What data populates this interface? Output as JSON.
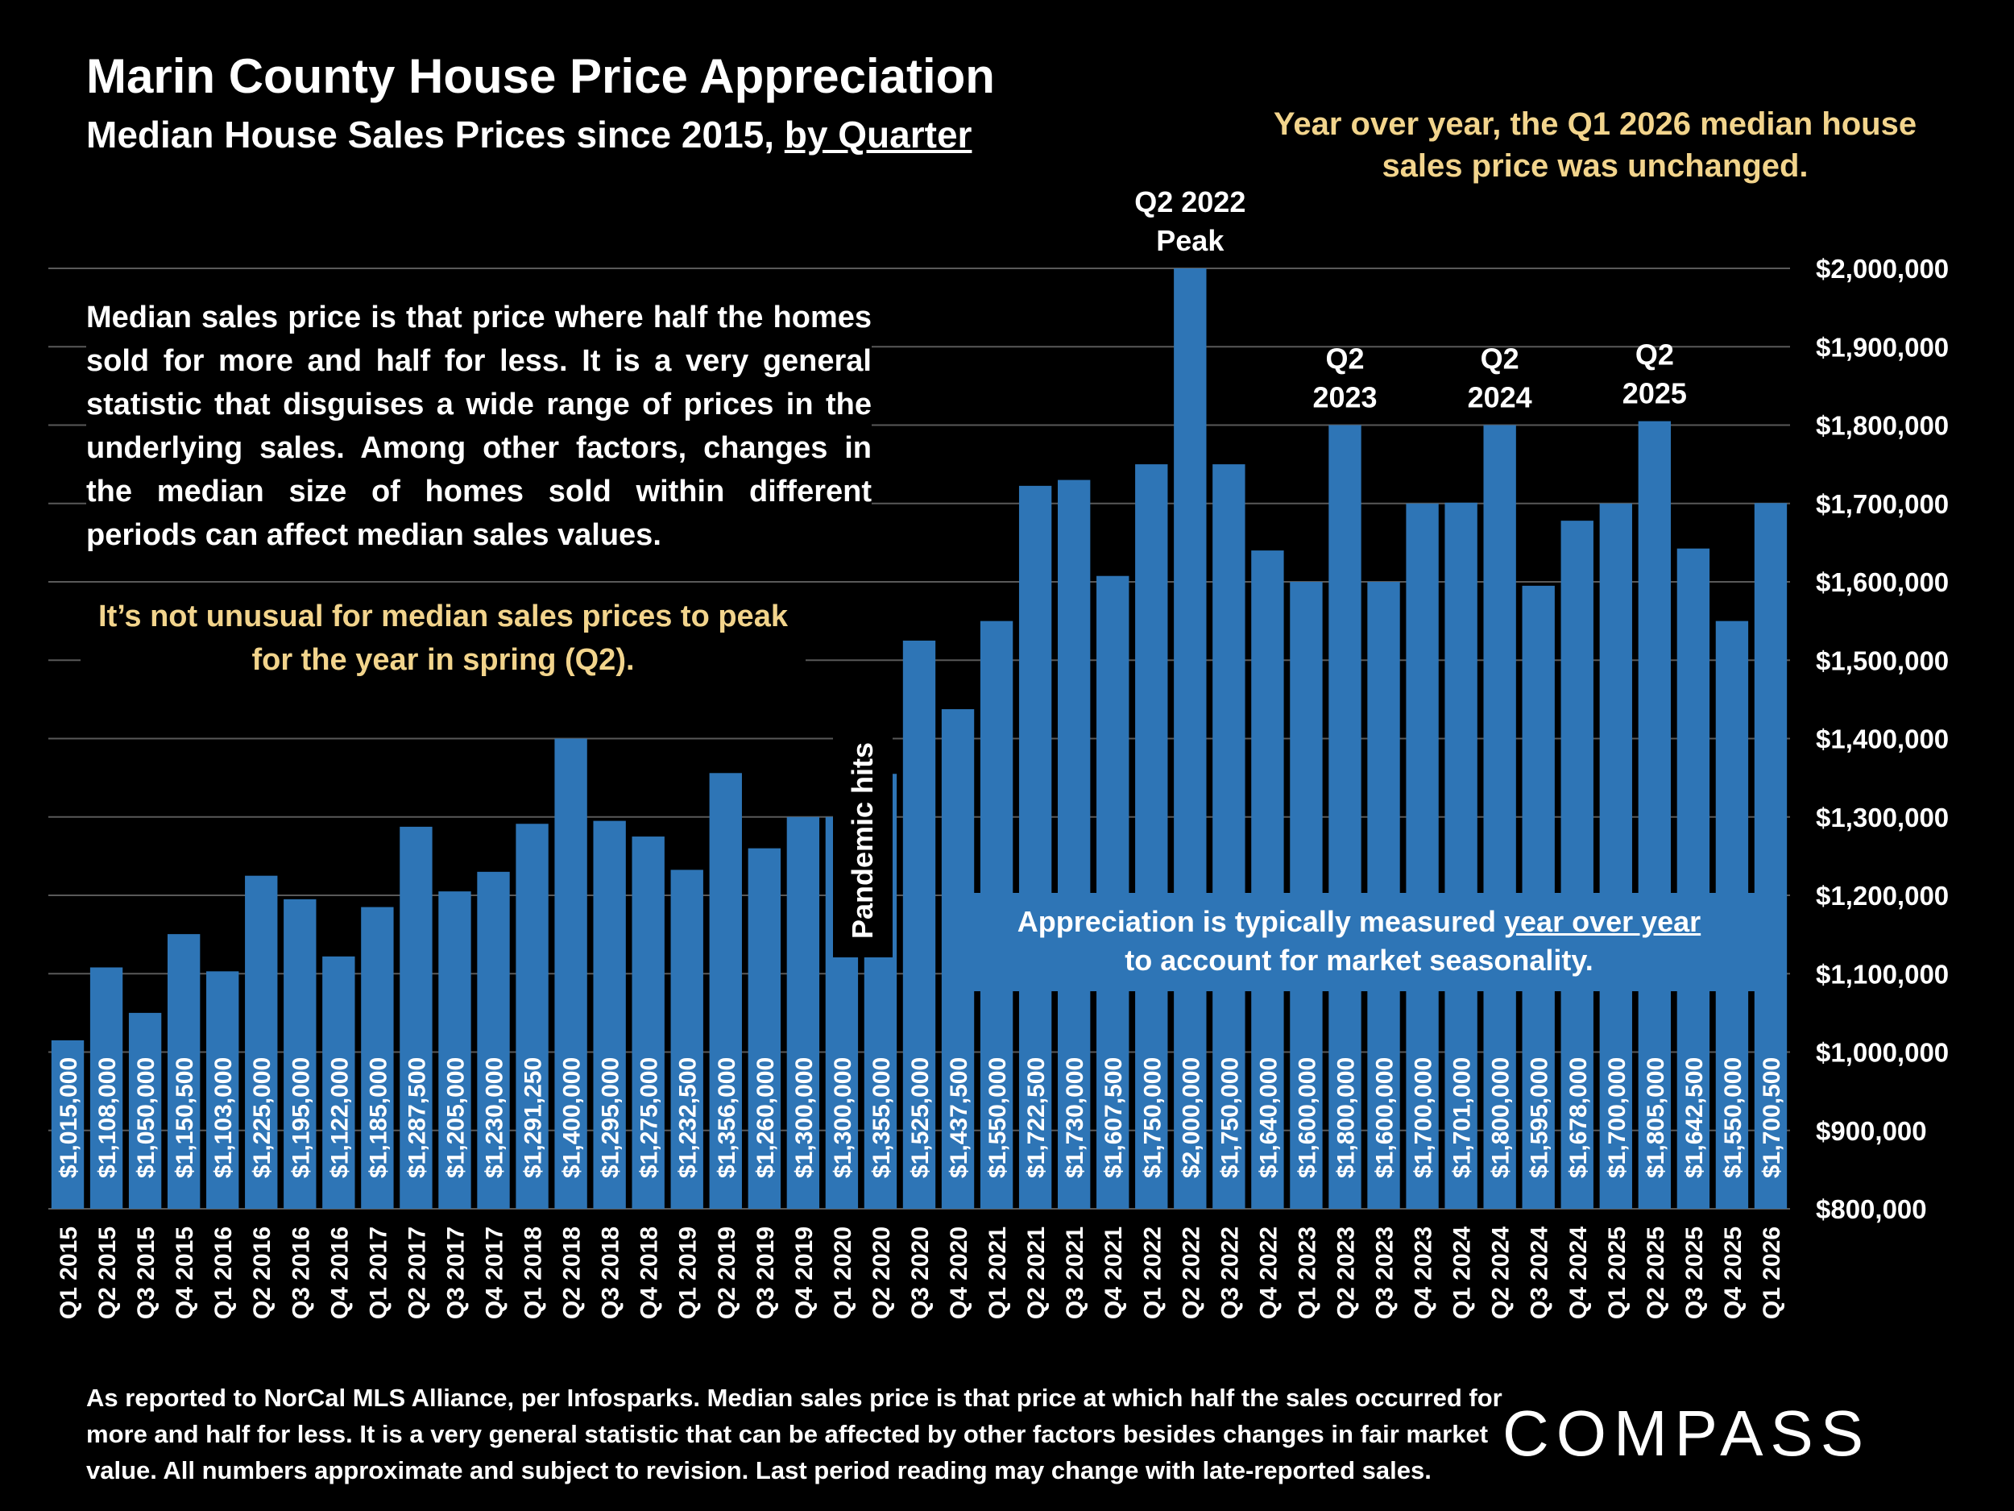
{
  "header": {
    "title": "Marin County House Price Appreciation",
    "subtitle_main": "Median House Sales Prices since 2015, ",
    "subtitle_underlined": "by Quarter"
  },
  "notes": {
    "yoy": "Year over year, the Q1 2026 median house sales price was unchanged.",
    "definition": "Median sales price is that price where half the homes sold for more and half for less. It is a very general statistic that disguises a wide range of prices in the underlying sales. Among other factors, changes in the median size of homes sold within different periods can affect median sales values.",
    "spring": "It’s not unusual for median sales prices to peak for the year in spring (Q2).",
    "pandemic": "Pandemic hits",
    "appreciation_pre": "Appreciation is typically measured ",
    "appreciation_u": "year over year",
    "appreciation_post": "to account for market seasonality.",
    "footnote": "As reported to NorCal MLS Alliance, per Infosparks. Median sales price is that price at which half the sales occurred for more and half for less. It is a very general statistic that can be affected by other factors besides changes in fair market value. All numbers approximate and subject to revision. Last period reading may change with late-reported sales."
  },
  "logo": {
    "text": "COMPASS"
  },
  "colors": {
    "bar": "#2e75b6",
    "grid": "#595959",
    "highlight_text": "#f2d48c"
  },
  "chart_data": {
    "type": "bar",
    "title": "Marin County House Price Appreciation",
    "subtitle": "Median House Sales Prices since 2015, by Quarter",
    "xlabel": "",
    "ylabel": "",
    "ylim": [
      800000,
      2000000
    ],
    "y_ticks": [
      800000,
      900000,
      1000000,
      1100000,
      1200000,
      1300000,
      1400000,
      1500000,
      1600000,
      1700000,
      1800000,
      1900000,
      2000000
    ],
    "y_tick_labels": [
      "$800,000",
      "$900,000",
      "$1,000,000",
      "$1,100,000",
      "$1,200,000",
      "$1,300,000",
      "$1,400,000",
      "$1,500,000",
      "$1,600,000",
      "$1,700,000",
      "$1,800,000",
      "$1,900,000",
      "$2,000,000"
    ],
    "y_axis_side": "right",
    "grid": true,
    "categories": [
      "Q1 2015",
      "Q2 2015",
      "Q3 2015",
      "Q4 2015",
      "Q1 2016",
      "Q2 2016",
      "Q3 2016",
      "Q4 2016",
      "Q1 2017",
      "Q2 2017",
      "Q3 2017",
      "Q4 2017",
      "Q1 2018",
      "Q2 2018",
      "Q3 2018",
      "Q4 2018",
      "Q1 2019",
      "Q2 2019",
      "Q3 2019",
      "Q4 2019",
      "Q1 2020",
      "Q2 2020",
      "Q3 2020",
      "Q4 2020",
      "Q1 2021",
      "Q2 2021",
      "Q3 2021",
      "Q4 2021",
      "Q1 2022",
      "Q2 2022",
      "Q3 2022",
      "Q4 2022",
      "Q1 2023",
      "Q2 2023",
      "Q3 2023",
      "Q4 2023",
      "Q1 2024",
      "Q2 2024",
      "Q3 2024",
      "Q4 2024",
      "Q1 2025",
      "Q2 2025",
      "Q3 2025",
      "Q4 2025",
      "Q1 2026"
    ],
    "values": [
      1015000,
      1108000,
      1050000,
      1150500,
      1103000,
      1225000,
      1195000,
      1122000,
      1185000,
      1287500,
      1205000,
      1230000,
      1291250,
      1400000,
      1295000,
      1275000,
      1232500,
      1356000,
      1260000,
      1300000,
      1300000,
      1355000,
      1525000,
      1437500,
      1550000,
      1722500,
      1730000,
      1607500,
      1750000,
      2000000,
      1750000,
      1640000,
      1600000,
      1800000,
      1600000,
      1700000,
      1701000,
      1800000,
      1595000,
      1678000,
      1700000,
      1805000,
      1642500,
      1550000,
      1700500
    ],
    "data_labels": [
      "$1,015,000",
      "$1,108,000",
      "$1,050,000",
      "$1,150,500",
      "$1,103,000",
      "$1,225,000",
      "$1,195,000",
      "$1,122,000",
      "$1,185,000",
      "$1,287,500",
      "$1,205,000",
      "$1,230,000",
      "$1,291,250",
      "$1,400,000",
      "$1,295,000",
      "$1,275,000",
      "$1,232,500",
      "$1,356,000",
      "$1,260,000",
      "$1,300,000",
      "$1,300,000",
      "$1,355,000",
      "$1,525,000",
      "$1,437,500",
      "$1,550,000",
      "$1,722,500",
      "$1,730,000",
      "$1,607,500",
      "$1,750,000",
      "$2,000,000",
      "$1,750,000",
      "$1,640,000",
      "$1,600,000",
      "$1,800,000",
      "$1,600,000",
      "$1,700,000",
      "$1,701,000",
      "$1,800,000",
      "$1,595,000",
      "$1,678,000",
      "$1,700,000",
      "$1,805,000",
      "$1,642,500",
      "$1,550,000",
      "$1,700,500"
    ],
    "annotations": [
      {
        "index": 29,
        "lines": [
          "Q2 2022",
          "Peak"
        ]
      },
      {
        "index": 33,
        "lines": [
          "Q2",
          "2023"
        ]
      },
      {
        "index": 37,
        "lines": [
          "Q2",
          "2024"
        ]
      },
      {
        "index": 41,
        "lines": [
          "Q2",
          "2025"
        ]
      }
    ]
  }
}
